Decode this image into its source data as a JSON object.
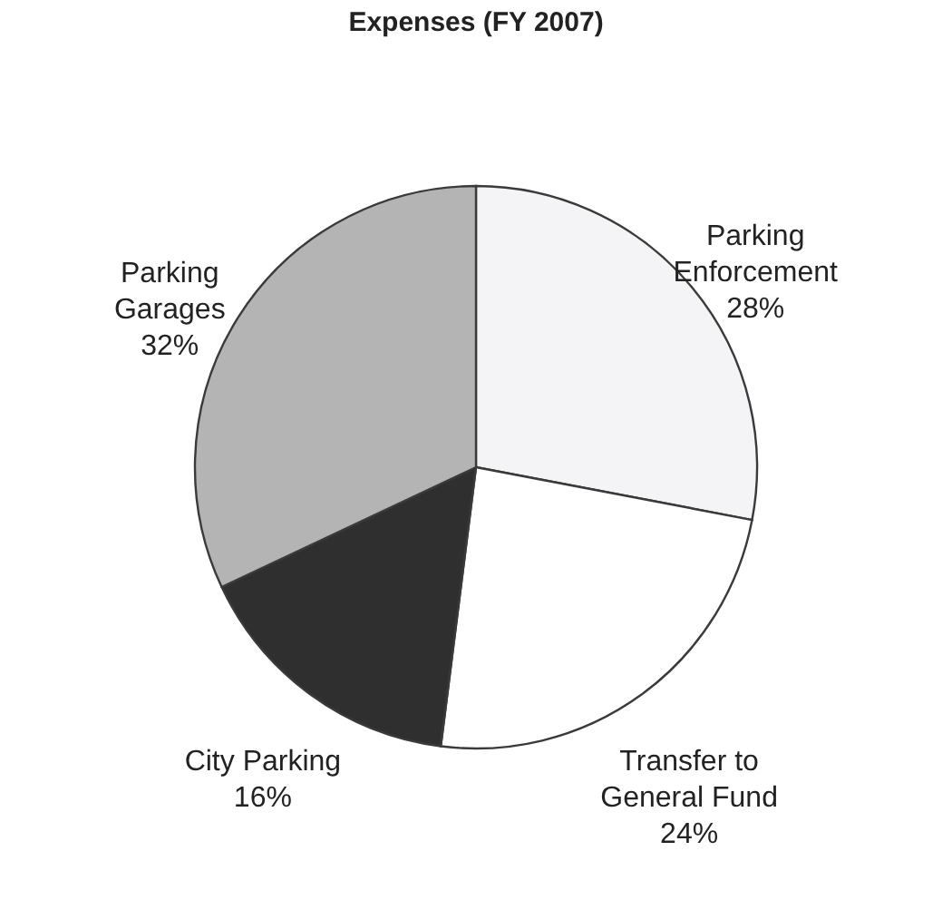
{
  "chart_data": {
    "type": "pie",
    "title": "Expenses (FY 2007)",
    "categories": [
      "Parking Enforcement",
      "Transfer to General Fund",
      "City Parking",
      "Parking Garages"
    ],
    "values": [
      28,
      24,
      16,
      32
    ],
    "value_labels": [
      "28%",
      "24%",
      "16%",
      "32%"
    ],
    "colors": [
      "#f4f4f6",
      "#ffffff",
      "#2f2f2f",
      "#b4b4b4"
    ],
    "legend": false
  }
}
